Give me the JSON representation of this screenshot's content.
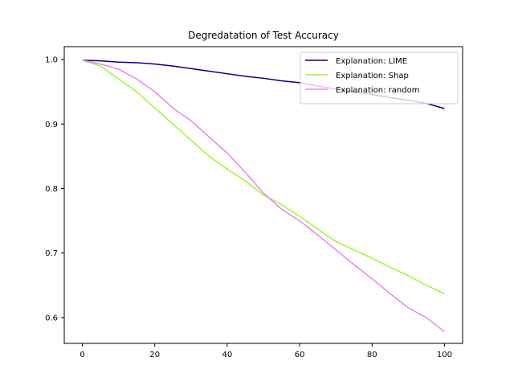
{
  "chart_data": {
    "type": "line",
    "title": "Degredatation of Test Accuracy",
    "xlabel": "",
    "ylabel": "",
    "xlim": [
      -5,
      105
    ],
    "ylim": [
      0.56,
      1.02
    ],
    "xticks": [
      0,
      20,
      40,
      60,
      80,
      100
    ],
    "yticks": [
      0.6,
      0.7,
      0.8,
      0.9,
      1.0
    ],
    "xtick_labels": [
      "0",
      "20",
      "40",
      "60",
      "80",
      "100"
    ],
    "ytick_labels": [
      "0.6",
      "0.7",
      "0.8",
      "0.9",
      "1.0"
    ],
    "grid": false,
    "legend_position": "upper-right",
    "x": [
      0,
      5,
      10,
      15,
      20,
      25,
      30,
      35,
      40,
      45,
      50,
      55,
      60,
      65,
      70,
      75,
      80,
      85,
      90,
      95,
      100
    ],
    "series": [
      {
        "name": "Explanation: LIME",
        "color": "#00008b",
        "values": [
          0.999,
          0.998,
          0.996,
          0.995,
          0.993,
          0.99,
          0.986,
          0.982,
          0.978,
          0.974,
          0.971,
          0.967,
          0.964,
          0.959,
          0.954,
          0.95,
          0.946,
          0.941,
          0.937,
          0.932,
          0.924
        ]
      },
      {
        "name": "Explanation: Shap",
        "color": "#9afa30",
        "values": [
          0.999,
          0.99,
          0.97,
          0.95,
          0.925,
          0.9,
          0.875,
          0.85,
          0.83,
          0.812,
          0.79,
          0.775,
          0.757,
          0.737,
          0.718,
          0.705,
          0.692,
          0.678,
          0.665,
          0.65,
          0.637
        ]
      },
      {
        "name": "Explanation: random",
        "color": "#ee82ee",
        "values": [
          0.999,
          0.993,
          0.985,
          0.97,
          0.95,
          0.925,
          0.905,
          0.88,
          0.855,
          0.825,
          0.793,
          0.768,
          0.75,
          0.728,
          0.705,
          0.682,
          0.66,
          0.637,
          0.615,
          0.6,
          0.578
        ]
      }
    ]
  }
}
